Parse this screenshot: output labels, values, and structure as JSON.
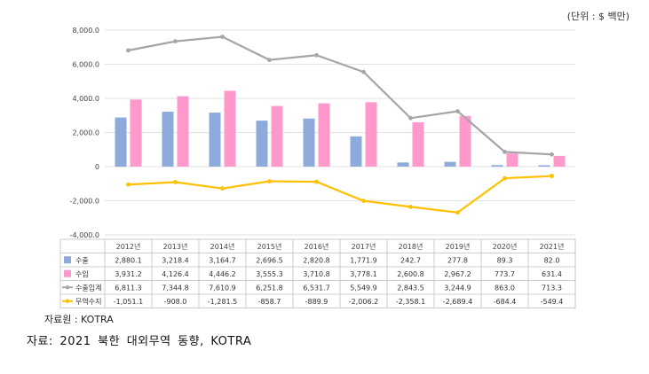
{
  "unit_label": "(단위 : $ 백만)",
  "source_small": "자료원 : KOTRA",
  "source_caption": "자료: 2021 북한 대외무역 동향, KOTRA",
  "chart_data": {
    "type": "bar",
    "ylim": [
      -4000,
      8000
    ],
    "yticks": [
      "8,000.0",
      "6,000.0",
      "4,000.0",
      "2,000.0",
      "0",
      "-2,000.0",
      "-4,000.0"
    ],
    "ytick_values": [
      8000,
      6000,
      4000,
      2000,
      0,
      -2000,
      -4000
    ],
    "categories": [
      "2012년",
      "2013년",
      "2014년",
      "2015년",
      "2016년",
      "2017년",
      "2018년",
      "2019년",
      "2020년",
      "2021년"
    ],
    "series": [
      {
        "name": "수출",
        "kind": "bar",
        "color": "#8eaadb",
        "values": [
          2880.1,
          3218.4,
          3164.7,
          2696.5,
          2820.8,
          1771.9,
          242.7,
          277.8,
          89.3,
          82.0
        ],
        "labels": [
          "2,880.1",
          "3,218.4",
          "3,164.7",
          "2,696.5",
          "2,820.8",
          "1,771.9",
          "242.7",
          "277.8",
          "89.3",
          "82.0"
        ]
      },
      {
        "name": "수입",
        "kind": "bar",
        "color": "#ff99cc",
        "values": [
          3931.2,
          4126.4,
          4446.2,
          3555.3,
          3710.8,
          3778.1,
          2600.8,
          2967.2,
          773.7,
          631.4
        ],
        "labels": [
          "3,931.2",
          "4,126.4",
          "4,446.2",
          "3,555.3",
          "3,710.8",
          "3,778.1",
          "2,600.8",
          "2,967.2",
          "773.7",
          "631.4"
        ]
      },
      {
        "name": "수출입계",
        "kind": "line",
        "color": "#a6a6a6",
        "values": [
          6811.3,
          7344.8,
          7610.9,
          6251.8,
          6531.7,
          5549.9,
          2843.5,
          3244.9,
          863.0,
          713.3
        ],
        "labels": [
          "6,811.3",
          "7,344.8",
          "7,610.9",
          "6,251.8",
          "6,531.7",
          "5,549.9",
          "2,843.5",
          "3,244.9",
          "863.0",
          "713.3"
        ]
      },
      {
        "name": "무역수지",
        "kind": "line",
        "color": "#ffc000",
        "values": [
          -1051.1,
          -908.0,
          -1281.5,
          -858.7,
          -889.9,
          -2006.2,
          -2358.1,
          -2689.4,
          -684.4,
          -549.4
        ],
        "labels": [
          "-1,051.1",
          "-908.0",
          "-1,281.5",
          "-858.7",
          "-889.9",
          "-2,006.2",
          "-2,358.1",
          "-2,689.4",
          "-684.4",
          "-549.4"
        ]
      }
    ]
  }
}
